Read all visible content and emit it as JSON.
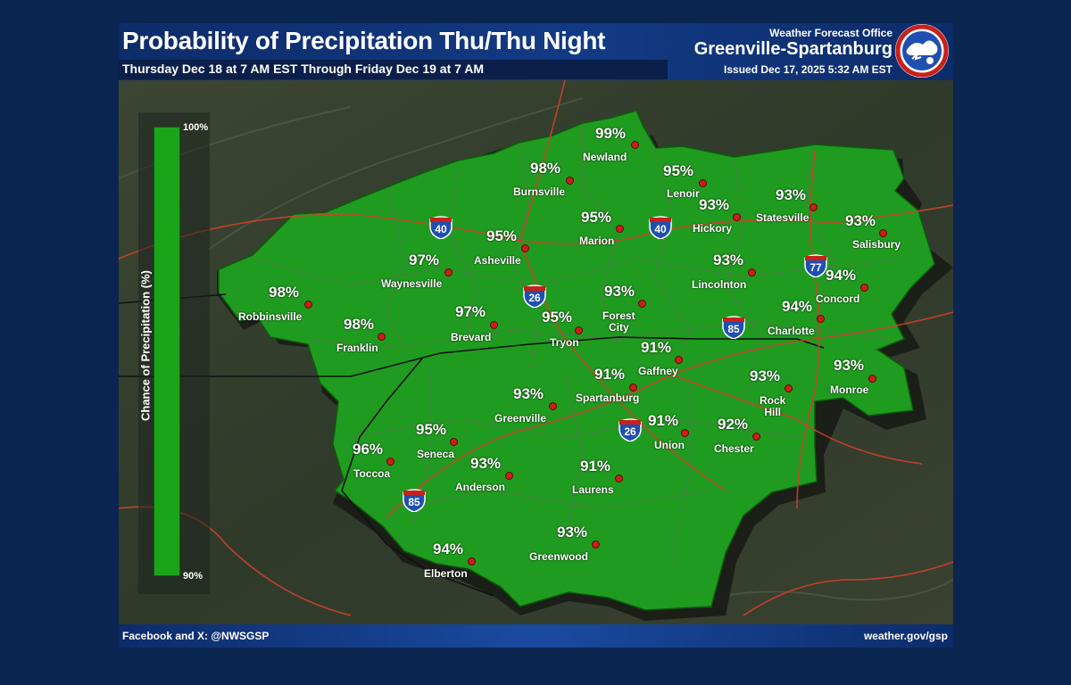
{
  "header": {
    "title": "Probability of Precipitation Thu/Thu Night",
    "subtitle": "Thursday Dec 18 at 7 AM EST Through Friday Dec 19 at 7 AM",
    "office_label": "Weather Forecast Office",
    "office_name": "Greenville-Spartanburg",
    "issued": "Issued Dec 17, 2025 5:32 AM EST"
  },
  "legend": {
    "title": "Chance of Precipitation (%)",
    "max_label": "100%",
    "min_label": "90%",
    "color": "#1aa41a"
  },
  "footer": {
    "social": "Facebook and X: @NWSGSP",
    "website": "weather.gov/gsp"
  },
  "colors": {
    "region_fill": "#1f9c1f",
    "banner": "#123a84",
    "background": "#0a2550",
    "roads": "#d0402c",
    "city_dot": "#c8201a"
  },
  "interstates": [
    "40",
    "40",
    "26",
    "26",
    "77",
    "85",
    "85"
  ],
  "locations": [
    {
      "name": "Newland",
      "pop": "99%"
    },
    {
      "name": "Burnsville",
      "pop": "98%"
    },
    {
      "name": "Lenoir",
      "pop": "95%"
    },
    {
      "name": "Hickory",
      "pop": "93%"
    },
    {
      "name": "Statesville",
      "pop": "93%"
    },
    {
      "name": "Salisbury",
      "pop": "93%"
    },
    {
      "name": "Marion",
      "pop": "95%"
    },
    {
      "name": "Asheville",
      "pop": "95%"
    },
    {
      "name": "Waynesville",
      "pop": "97%"
    },
    {
      "name": "Robbinsville",
      "pop": "98%"
    },
    {
      "name": "Franklin",
      "pop": "98%"
    },
    {
      "name": "Brevard",
      "pop": "97%"
    },
    {
      "name": "Tryon",
      "pop": "95%"
    },
    {
      "name": "Forest\nCity",
      "pop": "93%"
    },
    {
      "name": "Lincolnton",
      "pop": "93%"
    },
    {
      "name": "Concord",
      "pop": "94%"
    },
    {
      "name": "Charlotte",
      "pop": "94%"
    },
    {
      "name": "Gaffney",
      "pop": "91%"
    },
    {
      "name": "Spartanburg",
      "pop": "91%"
    },
    {
      "name": "Monroe",
      "pop": "93%"
    },
    {
      "name": "Greenville",
      "pop": "93%"
    },
    {
      "name": "Rock\nHill",
      "pop": "93%"
    },
    {
      "name": "Seneca",
      "pop": "95%"
    },
    {
      "name": "Union",
      "pop": "91%"
    },
    {
      "name": "Chester",
      "pop": "92%"
    },
    {
      "name": "Toccoa",
      "pop": "96%"
    },
    {
      "name": "Anderson",
      "pop": "93%"
    },
    {
      "name": "Laurens",
      "pop": "91%"
    },
    {
      "name": "Greenwood",
      "pop": "93%"
    },
    {
      "name": "Elberton",
      "pop": "94%"
    }
  ]
}
